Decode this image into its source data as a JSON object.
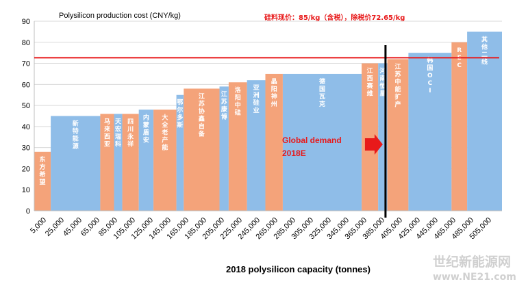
{
  "chart_data": {
    "type": "bar",
    "subtype": "variable-width cost curve",
    "title": "Polysilicon production cost (CNY/kg)",
    "xlabel": "2018 polysilicon capacity (tonnes)",
    "ylabel": "",
    "ylim": [
      0,
      90
    ],
    "yticks": [
      0,
      10,
      20,
      30,
      40,
      50,
      60,
      70,
      80,
      90
    ],
    "xlim": [
      0,
      510000
    ],
    "xtick_labels": [
      "5,000",
      "25,000",
      "45,000",
      "65,000",
      "85,000",
      "105,000",
      "125,000",
      "145,000",
      "165,000",
      "185,000",
      "205,000",
      "225,000",
      "245,000",
      "265,000",
      "285,000",
      "305,000",
      "325,000",
      "345,000",
      "365,000",
      "385,000",
      "405,000",
      "425,000",
      "445,000",
      "465,000",
      "485,000",
      "505,000"
    ],
    "grid": "horizontal",
    "legend": "none",
    "bars": [
      {
        "label": "东方希望",
        "start": 0,
        "end": 18000,
        "value": 28,
        "color": "#f4a37a"
      },
      {
        "label": "新特能源",
        "start": 18000,
        "end": 72000,
        "value": 45,
        "color": "#8fbde8"
      },
      {
        "label": "马来西亚",
        "start": 72000,
        "end": 87000,
        "value": 46,
        "color": "#f4a37a"
      },
      {
        "label": "天宏瑞科",
        "start": 87000,
        "end": 96000,
        "value": 46,
        "color": "#8fbde8"
      },
      {
        "label": "四川永祥",
        "start": 96000,
        "end": 114000,
        "value": 46,
        "color": "#f4a37a"
      },
      {
        "label": "内蒙盾安",
        "start": 114000,
        "end": 130000,
        "value": 48,
        "color": "#8fbde8"
      },
      {
        "label": "大全老产能",
        "start": 130000,
        "end": 155000,
        "value": 48,
        "color": "#f4a37a"
      },
      {
        "label": "鄂尔多斯",
        "start": 155000,
        "end": 163000,
        "value": 55,
        "color": "#8fbde8"
      },
      {
        "label": "江苏协鑫自备",
        "start": 163000,
        "end": 202000,
        "value": 58,
        "color": "#f4a37a"
      },
      {
        "label": "江苏康博",
        "start": 202000,
        "end": 212000,
        "value": 59,
        "color": "#8fbde8"
      },
      {
        "label": "洛阳中硅",
        "start": 212000,
        "end": 232000,
        "value": 61,
        "color": "#f4a37a"
      },
      {
        "label": "亚洲硅业",
        "start": 232000,
        "end": 252000,
        "value": 62,
        "color": "#8fbde8"
      },
      {
        "label": "晶阳神州",
        "start": 252000,
        "end": 271000,
        "value": 65,
        "color": "#f4a37a"
      },
      {
        "label": "德国瓦克",
        "start": 271000,
        "end": 357000,
        "value": 65,
        "color": "#8fbde8"
      },
      {
        "label": "江西赛维",
        "start": 357000,
        "end": 375000,
        "value": 70,
        "color": "#f4a37a"
      },
      {
        "label": "河南恒星",
        "start": 375000,
        "end": 385000,
        "value": 70,
        "color": "#8fbde8"
      },
      {
        "label": "江苏中能扩产",
        "start": 385000,
        "end": 408000,
        "value": 72,
        "color": "#f4a37a"
      },
      {
        "label": "韩国OCI",
        "start": 408000,
        "end": 455000,
        "value": 75,
        "color": "#8fbde8"
      },
      {
        "label": "REC",
        "start": 455000,
        "end": 472000,
        "value": 80,
        "color": "#f4a37a"
      },
      {
        "label": "其他二线",
        "start": 472000,
        "end": 510000,
        "value": 85,
        "color": "#8fbde8"
      }
    ],
    "price_line": {
      "value": 72.65,
      "color": "#e8191a",
      "note": "硅料现价：85/kg（含税），除税价72.65/kg"
    },
    "demand_line": {
      "x": 383000,
      "label_line1": "Global demand",
      "label_line2": "2018E",
      "color": "#000000",
      "arrow_color": "#e8191a"
    }
  },
  "watermark": {
    "line1": "世纪新能源网",
    "line2": "www.NE21.com"
  }
}
